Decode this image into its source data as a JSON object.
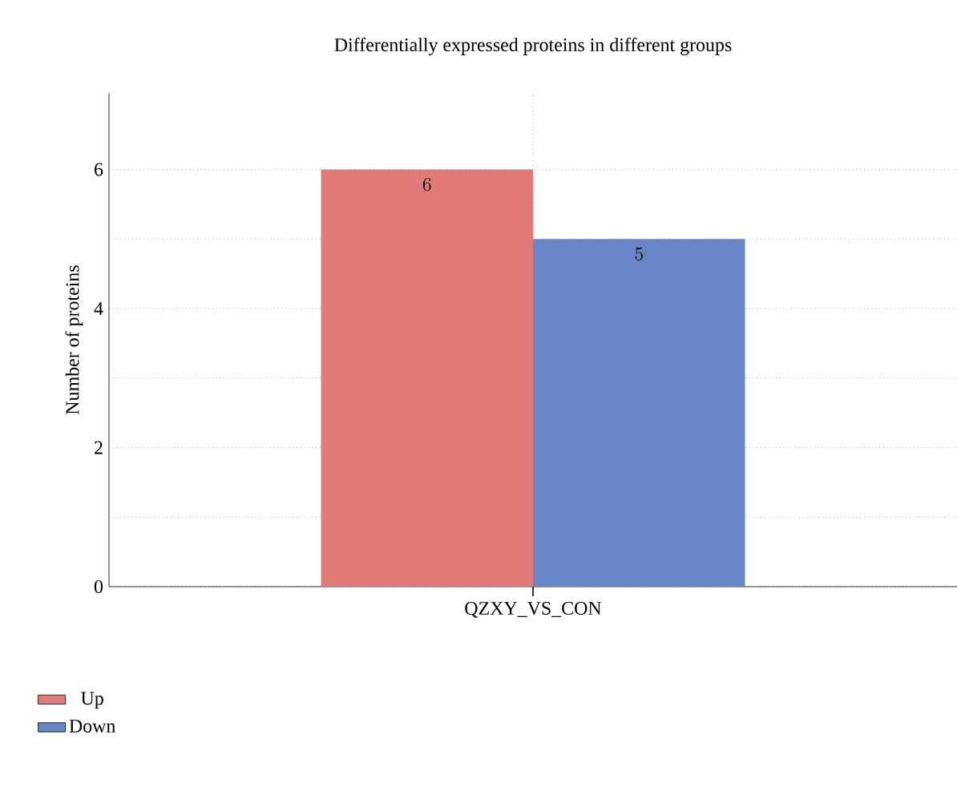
{
  "chart_data": {
    "type": "bar",
    "title": "Differentially expressed proteins in different groups",
    "ylabel": "Number of proteins",
    "categories": [
      "QZXY_VS_CON"
    ],
    "series": [
      {
        "name": "Up",
        "color": "#e07b78",
        "values": [
          6
        ]
      },
      {
        "name": "Down",
        "color": "#6886c5",
        "values": [
          5
        ]
      }
    ],
    "ylim": [
      0,
      7.1
    ],
    "yticks": [
      0,
      2,
      4,
      6
    ],
    "grid": true,
    "legend": "bottom left",
    "data_labels": true
  }
}
